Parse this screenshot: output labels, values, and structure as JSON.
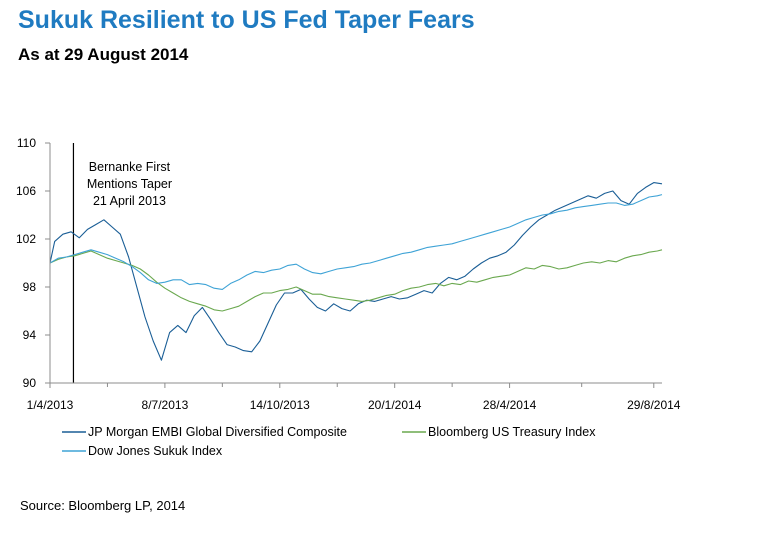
{
  "title": "Sukuk Resilient to US Fed Taper Fears",
  "subtitle": "As at 29 August 2014",
  "source": "Source:  Bloomberg  LP, 2014",
  "colors": {
    "title": "#1f7bc1",
    "jpm": "#1a5e96",
    "treasury": "#6aa84f",
    "sukuk": "#3fa3d6",
    "axis": "#8c8c8c"
  },
  "chart_data": {
    "type": "line",
    "title": "",
    "xlabel": "",
    "ylabel": "",
    "ylim": [
      90,
      110
    ],
    "yticks": [
      90,
      94,
      98,
      102,
      106,
      110
    ],
    "xlim": [
      "2013-04-01",
      "2014-09-05"
    ],
    "xticks": [
      {
        "date": "2013-04-01",
        "label": "1/4/2013"
      },
      {
        "date": "2013-07-08",
        "label": "8/7/2013"
      },
      {
        "date": "2013-10-14",
        "label": "14/10/2013"
      },
      {
        "date": "2014-01-20",
        "label": "20/1/2014"
      },
      {
        "date": "2014-04-28",
        "label": "28/4/2014"
      },
      {
        "date": "2014-08-29",
        "label": "29/8/2014"
      }
    ],
    "grid": false,
    "legend_position": "bottom",
    "annotation": {
      "date": "2013-04-21",
      "lines": [
        "Bernanke First",
        "Mentions Taper",
        "21 April 2013"
      ]
    },
    "series": [
      {
        "name": "JP Morgan EMBI Global Diversified Composite",
        "color": "#1a5e96",
        "points": [
          [
            "2013-04-01",
            100.0
          ],
          [
            "2013-04-05",
            101.8
          ],
          [
            "2013-04-12",
            102.4
          ],
          [
            "2013-04-19",
            102.6
          ],
          [
            "2013-04-26",
            102.1
          ],
          [
            "2013-05-03",
            102.8
          ],
          [
            "2013-05-10",
            103.2
          ],
          [
            "2013-05-17",
            103.6
          ],
          [
            "2013-05-24",
            103.0
          ],
          [
            "2013-05-31",
            102.4
          ],
          [
            "2013-06-07",
            100.5
          ],
          [
            "2013-06-14",
            98.0
          ],
          [
            "2013-06-21",
            95.5
          ],
          [
            "2013-06-28",
            93.5
          ],
          [
            "2013-07-05",
            91.9
          ],
          [
            "2013-07-12",
            94.2
          ],
          [
            "2013-07-19",
            94.8
          ],
          [
            "2013-07-26",
            94.2
          ],
          [
            "2013-08-02",
            95.6
          ],
          [
            "2013-08-09",
            96.3
          ],
          [
            "2013-08-16",
            95.3
          ],
          [
            "2013-08-23",
            94.2
          ],
          [
            "2013-08-30",
            93.2
          ],
          [
            "2013-09-06",
            93.0
          ],
          [
            "2013-09-13",
            92.7
          ],
          [
            "2013-09-20",
            92.6
          ],
          [
            "2013-09-27",
            93.5
          ],
          [
            "2013-10-04",
            95.0
          ],
          [
            "2013-10-11",
            96.5
          ],
          [
            "2013-10-18",
            97.5
          ],
          [
            "2013-10-25",
            97.5
          ],
          [
            "2013-11-01",
            97.8
          ],
          [
            "2013-11-08",
            97.0
          ],
          [
            "2013-11-15",
            96.3
          ],
          [
            "2013-11-22",
            96.0
          ],
          [
            "2013-11-29",
            96.6
          ],
          [
            "2013-12-06",
            96.2
          ],
          [
            "2013-12-13",
            96.0
          ],
          [
            "2013-12-20",
            96.6
          ],
          [
            "2013-12-27",
            96.9
          ],
          [
            "2014-01-03",
            96.8
          ],
          [
            "2014-01-10",
            97.0
          ],
          [
            "2014-01-17",
            97.2
          ],
          [
            "2014-01-24",
            97.0
          ],
          [
            "2014-01-31",
            97.1
          ],
          [
            "2014-02-07",
            97.4
          ],
          [
            "2014-02-14",
            97.7
          ],
          [
            "2014-02-21",
            97.5
          ],
          [
            "2014-02-28",
            98.3
          ],
          [
            "2014-03-07",
            98.8
          ],
          [
            "2014-03-14",
            98.6
          ],
          [
            "2014-03-21",
            98.9
          ],
          [
            "2014-03-28",
            99.5
          ],
          [
            "2014-04-04",
            100.0
          ],
          [
            "2014-04-11",
            100.4
          ],
          [
            "2014-04-18",
            100.6
          ],
          [
            "2014-04-25",
            100.9
          ],
          [
            "2014-05-02",
            101.5
          ],
          [
            "2014-05-09",
            102.3
          ],
          [
            "2014-05-16",
            103.0
          ],
          [
            "2014-05-23",
            103.6
          ],
          [
            "2014-05-30",
            104.0
          ],
          [
            "2014-06-06",
            104.4
          ],
          [
            "2014-06-13",
            104.7
          ],
          [
            "2014-06-20",
            105.0
          ],
          [
            "2014-06-27",
            105.3
          ],
          [
            "2014-07-04",
            105.6
          ],
          [
            "2014-07-11",
            105.4
          ],
          [
            "2014-07-18",
            105.8
          ],
          [
            "2014-07-25",
            106.0
          ],
          [
            "2014-08-01",
            105.2
          ],
          [
            "2014-08-08",
            104.9
          ],
          [
            "2014-08-15",
            105.8
          ],
          [
            "2014-08-22",
            106.3
          ],
          [
            "2014-08-29",
            106.7
          ],
          [
            "2014-09-05",
            106.6
          ]
        ]
      },
      {
        "name": "Bloomberg US Treasury Index",
        "color": "#6aa84f",
        "points": [
          [
            "2013-04-01",
            100.0
          ],
          [
            "2013-04-08",
            100.3
          ],
          [
            "2013-04-15",
            100.5
          ],
          [
            "2013-04-22",
            100.6
          ],
          [
            "2013-04-29",
            100.8
          ],
          [
            "2013-05-06",
            101.0
          ],
          [
            "2013-05-13",
            100.7
          ],
          [
            "2013-05-20",
            100.4
          ],
          [
            "2013-05-27",
            100.2
          ],
          [
            "2013-06-03",
            100.0
          ],
          [
            "2013-06-10",
            99.8
          ],
          [
            "2013-06-17",
            99.5
          ],
          [
            "2013-06-24",
            99.0
          ],
          [
            "2013-07-01",
            98.4
          ],
          [
            "2013-07-08",
            97.9
          ],
          [
            "2013-07-15",
            97.5
          ],
          [
            "2013-07-22",
            97.1
          ],
          [
            "2013-07-29",
            96.8
          ],
          [
            "2013-08-05",
            96.6
          ],
          [
            "2013-08-12",
            96.4
          ],
          [
            "2013-08-19",
            96.1
          ],
          [
            "2013-08-26",
            96.0
          ],
          [
            "2013-09-02",
            96.2
          ],
          [
            "2013-09-09",
            96.4
          ],
          [
            "2013-09-16",
            96.8
          ],
          [
            "2013-09-23",
            97.2
          ],
          [
            "2013-09-30",
            97.5
          ],
          [
            "2013-10-07",
            97.5
          ],
          [
            "2013-10-14",
            97.7
          ],
          [
            "2013-10-21",
            97.8
          ],
          [
            "2013-10-28",
            98.0
          ],
          [
            "2013-11-04",
            97.7
          ],
          [
            "2013-11-11",
            97.4
          ],
          [
            "2013-11-18",
            97.4
          ],
          [
            "2013-11-25",
            97.2
          ],
          [
            "2013-12-02",
            97.1
          ],
          [
            "2013-12-09",
            97.0
          ],
          [
            "2013-12-16",
            96.9
          ],
          [
            "2013-12-23",
            96.8
          ],
          [
            "2013-12-30",
            96.9
          ],
          [
            "2014-01-06",
            97.1
          ],
          [
            "2014-01-13",
            97.3
          ],
          [
            "2014-01-20",
            97.4
          ],
          [
            "2014-01-27",
            97.7
          ],
          [
            "2014-02-03",
            97.9
          ],
          [
            "2014-02-10",
            98.0
          ],
          [
            "2014-02-17",
            98.2
          ],
          [
            "2014-02-24",
            98.3
          ],
          [
            "2014-03-03",
            98.1
          ],
          [
            "2014-03-10",
            98.3
          ],
          [
            "2014-03-17",
            98.2
          ],
          [
            "2014-03-24",
            98.5
          ],
          [
            "2014-03-31",
            98.4
          ],
          [
            "2014-04-07",
            98.6
          ],
          [
            "2014-04-14",
            98.8
          ],
          [
            "2014-04-21",
            98.9
          ],
          [
            "2014-04-28",
            99.0
          ],
          [
            "2014-05-05",
            99.3
          ],
          [
            "2014-05-12",
            99.6
          ],
          [
            "2014-05-19",
            99.5
          ],
          [
            "2014-05-26",
            99.8
          ],
          [
            "2014-06-02",
            99.7
          ],
          [
            "2014-06-09",
            99.5
          ],
          [
            "2014-06-16",
            99.6
          ],
          [
            "2014-06-23",
            99.8
          ],
          [
            "2014-06-30",
            100.0
          ],
          [
            "2014-07-07",
            100.1
          ],
          [
            "2014-07-14",
            100.0
          ],
          [
            "2014-07-21",
            100.2
          ],
          [
            "2014-07-28",
            100.1
          ],
          [
            "2014-08-04",
            100.4
          ],
          [
            "2014-08-11",
            100.6
          ],
          [
            "2014-08-18",
            100.7
          ],
          [
            "2014-08-25",
            100.9
          ],
          [
            "2014-09-01",
            101.0
          ],
          [
            "2014-09-05",
            101.1
          ]
        ]
      },
      {
        "name": "Dow Jones Sukuk Index",
        "color": "#3fa3d6",
        "points": [
          [
            "2013-04-01",
            100.0
          ],
          [
            "2013-04-08",
            100.4
          ],
          [
            "2013-04-15",
            100.5
          ],
          [
            "2013-04-22",
            100.7
          ],
          [
            "2013-04-29",
            100.9
          ],
          [
            "2013-05-06",
            101.1
          ],
          [
            "2013-05-13",
            100.9
          ],
          [
            "2013-05-20",
            100.7
          ],
          [
            "2013-05-27",
            100.4
          ],
          [
            "2013-06-03",
            100.1
          ],
          [
            "2013-06-10",
            99.7
          ],
          [
            "2013-06-17",
            99.2
          ],
          [
            "2013-06-24",
            98.6
          ],
          [
            "2013-07-01",
            98.3
          ],
          [
            "2013-07-08",
            98.4
          ],
          [
            "2013-07-15",
            98.6
          ],
          [
            "2013-07-22",
            98.6
          ],
          [
            "2013-07-29",
            98.2
          ],
          [
            "2013-08-05",
            98.3
          ],
          [
            "2013-08-12",
            98.2
          ],
          [
            "2013-08-19",
            97.9
          ],
          [
            "2013-08-26",
            97.8
          ],
          [
            "2013-09-02",
            98.3
          ],
          [
            "2013-09-09",
            98.6
          ],
          [
            "2013-09-16",
            99.0
          ],
          [
            "2013-09-23",
            99.3
          ],
          [
            "2013-09-30",
            99.2
          ],
          [
            "2013-10-07",
            99.4
          ],
          [
            "2013-10-14",
            99.5
          ],
          [
            "2013-10-21",
            99.8
          ],
          [
            "2013-10-28",
            99.9
          ],
          [
            "2013-11-04",
            99.5
          ],
          [
            "2013-11-11",
            99.2
          ],
          [
            "2013-11-18",
            99.1
          ],
          [
            "2013-11-25",
            99.3
          ],
          [
            "2013-12-02",
            99.5
          ],
          [
            "2013-12-09",
            99.6
          ],
          [
            "2013-12-16",
            99.7
          ],
          [
            "2013-12-23",
            99.9
          ],
          [
            "2013-12-30",
            100.0
          ],
          [
            "2014-01-06",
            100.2
          ],
          [
            "2014-01-13",
            100.4
          ],
          [
            "2014-01-20",
            100.6
          ],
          [
            "2014-01-27",
            100.8
          ],
          [
            "2014-02-03",
            100.9
          ],
          [
            "2014-02-10",
            101.1
          ],
          [
            "2014-02-17",
            101.3
          ],
          [
            "2014-02-24",
            101.4
          ],
          [
            "2014-03-03",
            101.5
          ],
          [
            "2014-03-10",
            101.6
          ],
          [
            "2014-03-17",
            101.8
          ],
          [
            "2014-03-24",
            102.0
          ],
          [
            "2014-03-31",
            102.2
          ],
          [
            "2014-04-07",
            102.4
          ],
          [
            "2014-04-14",
            102.6
          ],
          [
            "2014-04-21",
            102.8
          ],
          [
            "2014-04-28",
            103.0
          ],
          [
            "2014-05-05",
            103.3
          ],
          [
            "2014-05-12",
            103.6
          ],
          [
            "2014-05-19",
            103.8
          ],
          [
            "2014-05-26",
            104.0
          ],
          [
            "2014-06-02",
            104.1
          ],
          [
            "2014-06-09",
            104.3
          ],
          [
            "2014-06-16",
            104.4
          ],
          [
            "2014-06-23",
            104.6
          ],
          [
            "2014-06-30",
            104.7
          ],
          [
            "2014-07-07",
            104.8
          ],
          [
            "2014-07-14",
            104.9
          ],
          [
            "2014-07-21",
            105.0
          ],
          [
            "2014-07-28",
            105.0
          ],
          [
            "2014-08-04",
            104.8
          ],
          [
            "2014-08-11",
            104.9
          ],
          [
            "2014-08-18",
            105.2
          ],
          [
            "2014-08-25",
            105.5
          ],
          [
            "2014-09-01",
            105.6
          ],
          [
            "2014-09-05",
            105.7
          ]
        ]
      }
    ]
  }
}
